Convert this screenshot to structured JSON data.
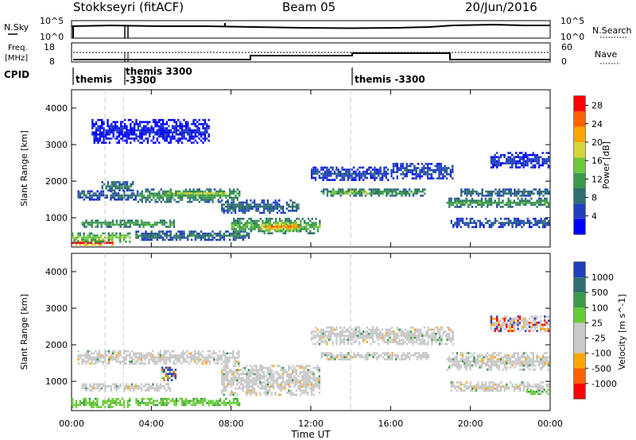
{
  "header": {
    "title": "Stokkseyri (fitACF)",
    "beam": "Beam 05",
    "date": "20/Jun/2016"
  },
  "panels": {
    "noise": {
      "left_label": "N.Sky",
      "left_ticks": [
        "10^5",
        "10^0"
      ],
      "right_ticks": [
        "10^5",
        "10^0"
      ],
      "right_label": "N.Search"
    },
    "freq": {
      "left_label_1": "Freq.",
      "left_label_2": "[MHz]",
      "left_ticks": [
        "18",
        "8"
      ],
      "right_ticks": [
        "60",
        "0"
      ],
      "right_label": "Nave"
    },
    "cpid": {
      "label": "CPID",
      "entries": [
        "themis",
        "themis 3300",
        "-3300",
        "themis -3300"
      ]
    }
  },
  "chart_data": [
    {
      "type": "heatmap",
      "panel": "power",
      "ylabel": "Slant Range [km]",
      "xlabel": "",
      "ylim": [
        200,
        4500
      ],
      "yticks": [
        "1000",
        "2000",
        "3000",
        "4000"
      ],
      "xlim_hours": [
        0,
        24
      ],
      "colorbar": {
        "label": "Power [dB]",
        "ticks": [
          "4",
          "8",
          "12",
          "16",
          "20",
          "24",
          "28"
        ],
        "range": [
          0,
          30
        ],
        "colors": [
          "#0000ff",
          "#1f3fbf",
          "#2f6f6f",
          "#3a9a4a",
          "#6ec83c",
          "#d4d43c",
          "#ffa500",
          "#ff6000",
          "#ff0000"
        ]
      },
      "bands": [
        {
          "t0": 0.0,
          "t1": 2.2,
          "r0": 220,
          "r1": 400,
          "level": 29
        },
        {
          "t0": 0.0,
          "t1": 3.0,
          "r0": 300,
          "r1": 600,
          "level": 16
        },
        {
          "t0": 0.5,
          "t1": 5.2,
          "r0": 700,
          "r1": 950,
          "level": 13
        },
        {
          "t0": 3.2,
          "t1": 9.0,
          "r0": 350,
          "r1": 650,
          "level": 9
        },
        {
          "t0": 0.3,
          "t1": 3.4,
          "r0": 1450,
          "r1": 1750,
          "level": 8
        },
        {
          "t0": 1.5,
          "t1": 3.2,
          "r0": 1700,
          "r1": 2000,
          "level": 10
        },
        {
          "t0": 3.3,
          "t1": 8.5,
          "r0": 1400,
          "r1": 1800,
          "level": 12
        },
        {
          "t0": 4.8,
          "t1": 7.8,
          "r0": 1550,
          "r1": 1750,
          "level": 17
        },
        {
          "t0": 7.5,
          "t1": 11.5,
          "r0": 1100,
          "r1": 1500,
          "level": 8
        },
        {
          "t0": 8.0,
          "t1": 12.5,
          "r0": 500,
          "r1": 1000,
          "level": 14
        },
        {
          "t0": 9.5,
          "t1": 11.5,
          "r0": 600,
          "r1": 900,
          "level": 23
        },
        {
          "t0": 12.5,
          "t1": 17.8,
          "r0": 1550,
          "r1": 1800,
          "level": 12
        },
        {
          "t0": 13.0,
          "t1": 15.0,
          "r0": 1600,
          "r1": 1750,
          "level": 21
        },
        {
          "t0": 12.0,
          "t1": 16.0,
          "r0": 1950,
          "r1": 2400,
          "level": 6
        },
        {
          "t0": 16.0,
          "t1": 19.2,
          "r0": 2000,
          "r1": 2500,
          "level": 6
        },
        {
          "t0": 18.8,
          "t1": 24.0,
          "r0": 1250,
          "r1": 1550,
          "level": 12
        },
        {
          "t0": 19.5,
          "t1": 24.0,
          "r0": 1550,
          "r1": 1800,
          "level": 9
        },
        {
          "t0": 19.0,
          "t1": 24.0,
          "r0": 700,
          "r1": 1000,
          "level": 7
        },
        {
          "t0": 21.0,
          "t1": 24.0,
          "r0": 2300,
          "r1": 2800,
          "level": 5
        },
        {
          "t0": 1.0,
          "t1": 7.0,
          "r0": 3000,
          "r1": 3700,
          "level": 3
        }
      ]
    },
    {
      "type": "heatmap",
      "panel": "velocity",
      "ylabel": "Slant Range [km]",
      "xlabel": "Time UT",
      "ylim": [
        200,
        4500
      ],
      "yticks": [
        "1000",
        "2000",
        "3000",
        "4000"
      ],
      "xlim_hours": [
        0,
        24
      ],
      "xticks": [
        "00:00",
        "04:00",
        "08:00",
        "12:00",
        "16:00",
        "20:00",
        "00:00"
      ],
      "colorbar": {
        "label": "Velocity [m s^-1]",
        "ticks": [
          "1000",
          "500",
          "100",
          "25",
          "-25",
          "-100",
          "-500",
          "-1000"
        ],
        "colors": [
          "#1f3fbf",
          "#2f6f6f",
          "#3a9a4a",
          "#66cc33",
          "#c8c8c8",
          "#c8c8c8",
          "#ffa500",
          "#ff6000",
          "#ff0000"
        ]
      },
      "bands": [
        {
          "t0": 0.0,
          "t1": 3.0,
          "r0": 250,
          "r1": 550,
          "class": "green"
        },
        {
          "t0": 3.2,
          "t1": 8.5,
          "r0": 300,
          "r1": 550,
          "class": "green"
        },
        {
          "t0": 0.5,
          "t1": 5.0,
          "r0": 700,
          "r1": 950,
          "class": "gray"
        },
        {
          "t0": 0.3,
          "t1": 8.5,
          "r0": 1400,
          "r1": 1850,
          "class": "gray"
        },
        {
          "t0": 7.5,
          "t1": 12.5,
          "r0": 600,
          "r1": 1450,
          "class": "gray"
        },
        {
          "t0": 12.5,
          "t1": 18.0,
          "r0": 1550,
          "r1": 1800,
          "class": "gray"
        },
        {
          "t0": 12.0,
          "t1": 19.2,
          "r0": 1950,
          "r1": 2500,
          "class": "gray"
        },
        {
          "t0": 18.8,
          "t1": 24.0,
          "r0": 1250,
          "r1": 1800,
          "class": "gray"
        },
        {
          "t0": 19.0,
          "t1": 24.0,
          "r0": 700,
          "r1": 1000,
          "class": "gray"
        },
        {
          "t0": 21.0,
          "t1": 24.0,
          "r0": 2300,
          "r1": 2800,
          "class": "mixed"
        },
        {
          "t0": 22.8,
          "t1": 24.0,
          "r0": 600,
          "r1": 800,
          "class": "green"
        },
        {
          "t0": 4.5,
          "t1": 5.3,
          "r0": 1000,
          "r1": 1400,
          "class": "blue"
        }
      ]
    }
  ]
}
